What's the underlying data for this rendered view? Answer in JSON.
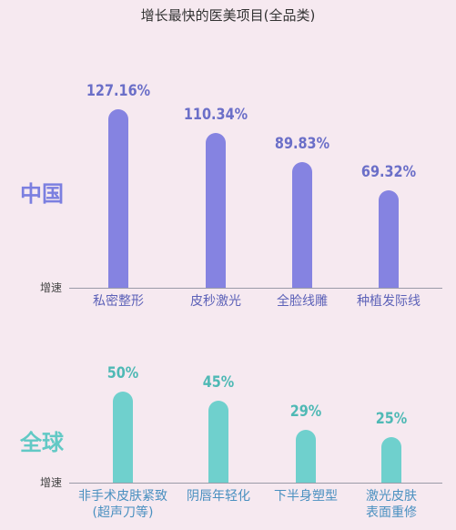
{
  "title": "增长最快的医美项目(全品类)",
  "chart_data": [
    {
      "type": "bar",
      "label": "中国",
      "axis_label": "增速",
      "color": "#8583e1",
      "categories": [
        "私密整形",
        "皮秒激光",
        "全脸线雕",
        "种植发际线"
      ],
      "values": [
        127.16,
        110.34,
        89.83,
        69.32
      ],
      "value_labels": [
        "127.16%",
        "110.34%",
        "89.83%",
        "69.32%"
      ]
    },
    {
      "type": "bar",
      "label": "全球",
      "axis_label": "增速",
      "color": "#6fd0cd",
      "categories": [
        "非手术皮肤紧致\n(超声刀等)",
        "阴唇年轻化",
        "下半身塑型",
        "激光皮肤\n表面重修"
      ],
      "values": [
        50,
        45,
        29,
        25
      ],
      "value_labels": [
        "50%",
        "45%",
        "29%",
        "25%"
      ]
    }
  ]
}
